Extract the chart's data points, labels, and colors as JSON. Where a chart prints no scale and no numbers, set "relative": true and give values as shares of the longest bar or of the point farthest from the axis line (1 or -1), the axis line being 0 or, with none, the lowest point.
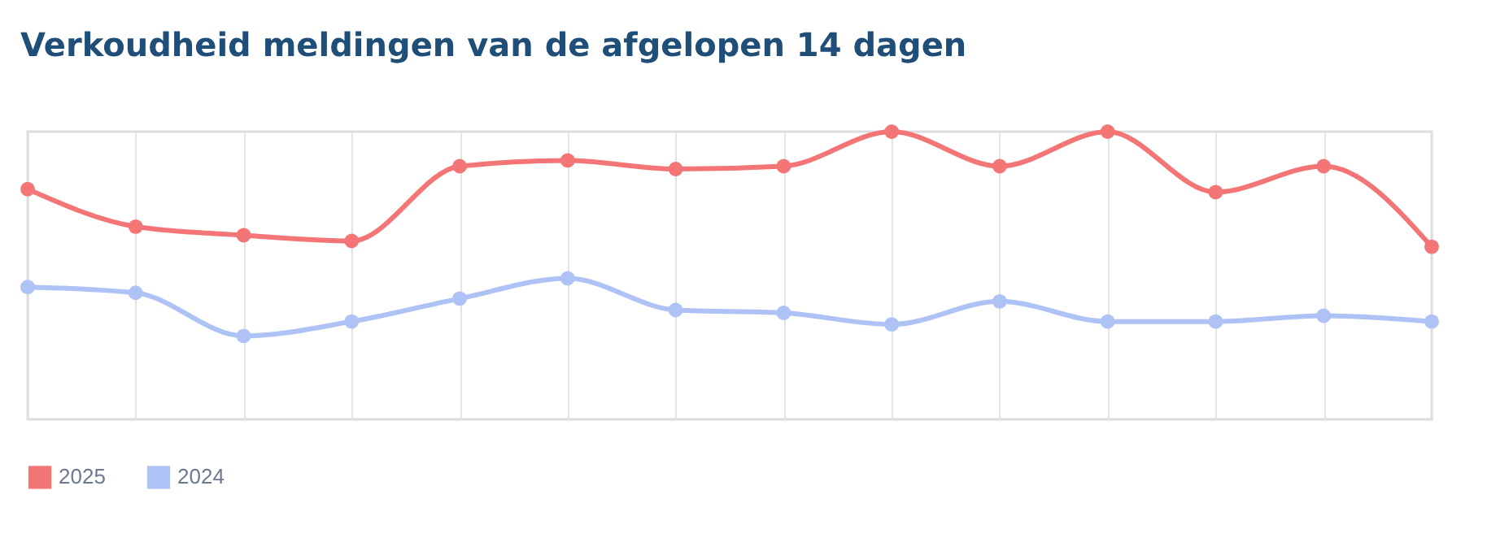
{
  "chart_data": {
    "type": "line",
    "title": "Verkoudheid meldingen van de afgelopen 14 dagen",
    "categories": [
      null,
      null,
      null,
      null,
      null,
      null,
      null,
      null,
      null,
      null,
      null,
      null,
      null,
      null
    ],
    "relative": true,
    "series": [
      {
        "name": "2025",
        "color": "#f47575",
        "values": [
          0.8,
          0.67,
          0.64,
          0.62,
          0.88,
          0.9,
          0.87,
          0.88,
          1.0,
          0.88,
          1.0,
          0.79,
          0.88,
          0.6
        ]
      },
      {
        "name": "2024",
        "color": "#aec2f5",
        "values": [
          0.46,
          0.44,
          0.29,
          0.34,
          0.42,
          0.49,
          0.38,
          0.37,
          0.33,
          0.41,
          0.34,
          0.34,
          0.36,
          0.34
        ]
      }
    ],
    "marker": "circle",
    "line_style": "solid",
    "grid": "x",
    "legend": "bottom left",
    "tick_labels": false
  }
}
